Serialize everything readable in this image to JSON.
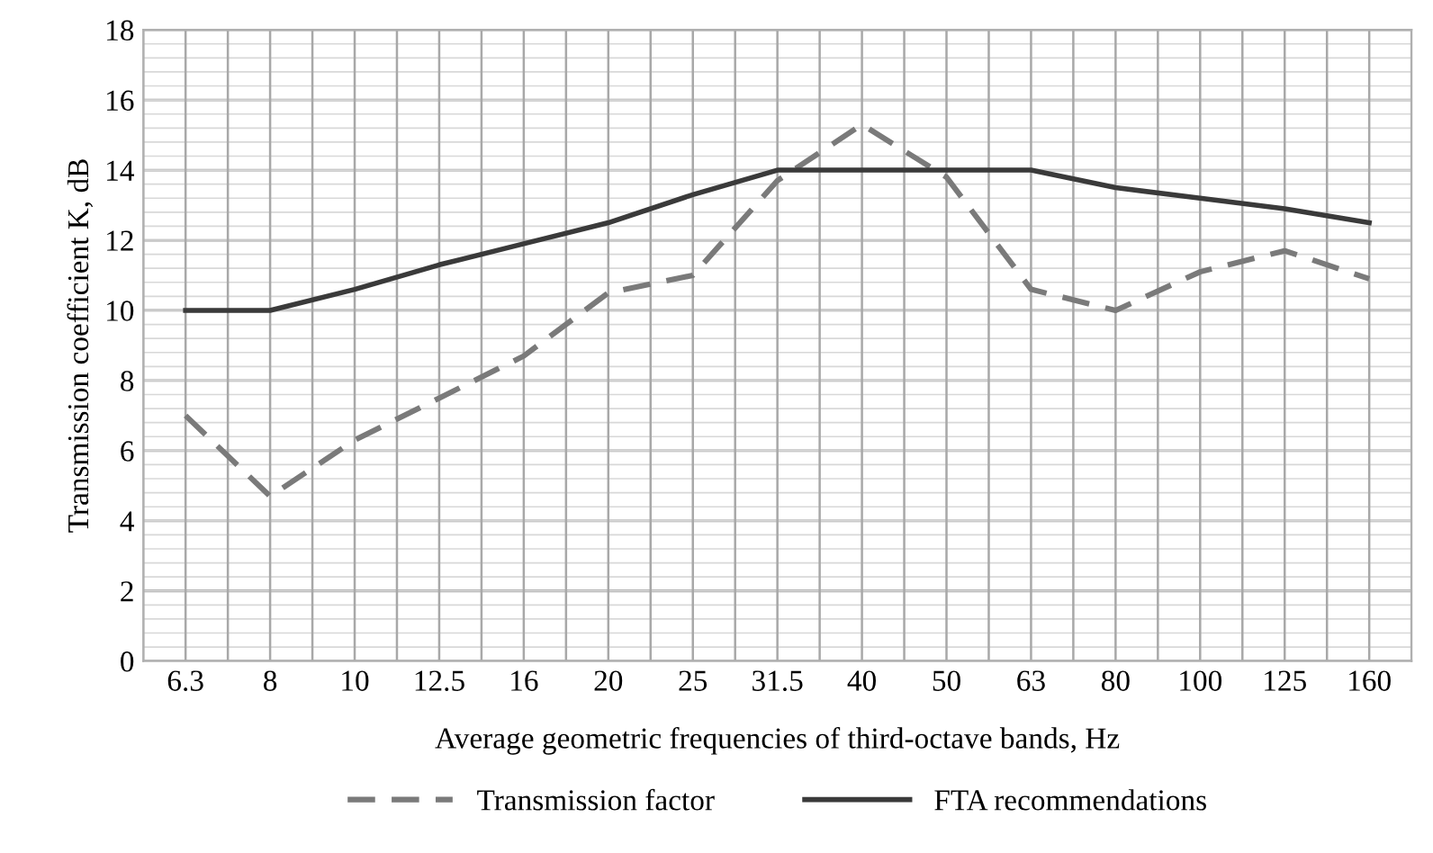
{
  "chart_data": {
    "type": "line",
    "xlabel": "Average geometric frequencies of third-octave bands, Hz",
    "ylabel": "Transmission coefficient K, dB",
    "categories": [
      "6.3",
      "8",
      "10",
      "12.5",
      "16",
      "20",
      "25",
      "31.5",
      "40",
      "50",
      "63",
      "80",
      "100",
      "125",
      "160"
    ],
    "series": [
      {
        "name": "Transmission factor",
        "color": "#7a7a7a",
        "line_style": "dashed",
        "values": [
          7,
          4.7,
          6.3,
          7.5,
          8.7,
          10.5,
          11,
          13.7,
          15.3,
          13.8,
          10.6,
          10,
          11.1,
          11.7,
          10.9
        ]
      },
      {
        "name": "FTA recommendations",
        "color": "#3a3a3a",
        "line_style": "solid",
        "values": [
          10,
          10,
          10.6,
          11.3,
          11.9,
          12.5,
          13.3,
          14,
          14,
          14,
          14,
          13.5,
          13.2,
          12.9,
          12.5
        ]
      }
    ],
    "ylim": [
      0,
      18
    ],
    "yticks": [
      0,
      2,
      4,
      6,
      8,
      10,
      12,
      14,
      16,
      18
    ],
    "grid": true,
    "legend": "bottom",
    "marker": "none"
  }
}
